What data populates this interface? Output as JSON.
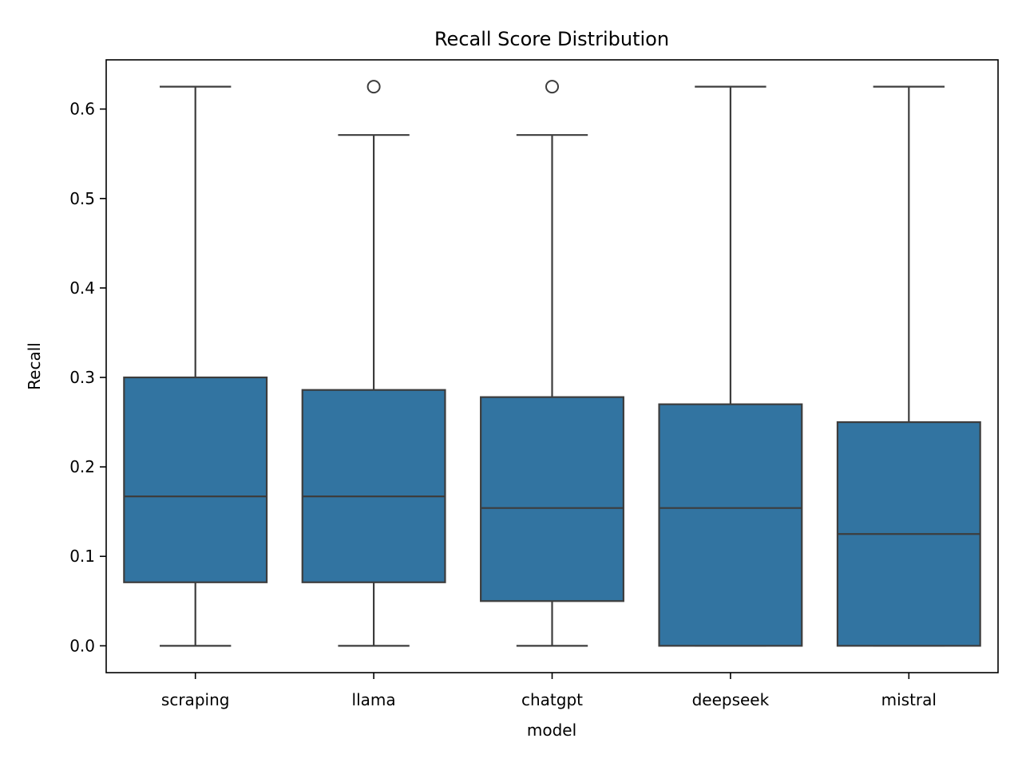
{
  "chart_data": {
    "type": "box",
    "title": "Recall Score Distribution",
    "xlabel": "model",
    "ylabel": "Recall",
    "ylim": [
      -0.03,
      0.655
    ],
    "yticks": [
      0.0,
      0.1,
      0.2,
      0.3,
      0.4,
      0.5,
      0.6
    ],
    "ytick_labels": [
      "0.0",
      "0.1",
      "0.2",
      "0.3",
      "0.4",
      "0.5",
      "0.6"
    ],
    "grid": false,
    "categories": [
      "scraping",
      "llama",
      "chatgpt",
      "deepseek",
      "mistral"
    ],
    "series": [
      {
        "values": [
          {
            "whisker_low": 0.0,
            "q1": 0.071,
            "median": 0.167,
            "q3": 0.3,
            "whisker_high": 0.625,
            "outliers": []
          },
          {
            "whisker_low": 0.0,
            "q1": 0.071,
            "median": 0.167,
            "q3": 0.286,
            "whisker_high": 0.571,
            "outliers": [
              0.625
            ]
          },
          {
            "whisker_low": 0.0,
            "q1": 0.05,
            "median": 0.154,
            "q3": 0.278,
            "whisker_high": 0.571,
            "outliers": [
              0.625
            ]
          },
          {
            "whisker_low": 0.0,
            "q1": 0.0,
            "median": 0.154,
            "q3": 0.27,
            "whisker_high": 0.625,
            "outliers": []
          },
          {
            "whisker_low": 0.0,
            "q1": 0.0,
            "median": 0.125,
            "q3": 0.25,
            "whisker_high": 0.625,
            "outliers": []
          }
        ]
      }
    ],
    "colors": {
      "box_fill": "#3274a1",
      "line": "#3d3d3d",
      "axis": "#000000"
    }
  }
}
